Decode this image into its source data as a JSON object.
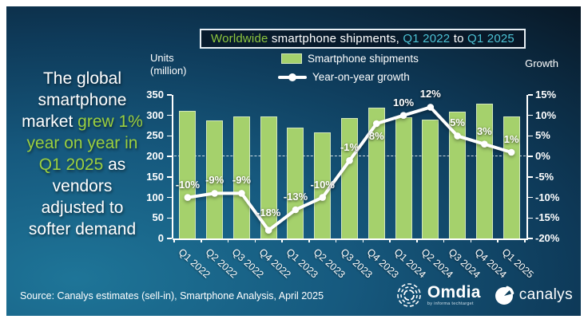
{
  "headline": {
    "lines": [
      {
        "parts": [
          {
            "t": "The global",
            "c": "w"
          }
        ]
      },
      {
        "parts": [
          {
            "t": "smartphone",
            "c": "w"
          }
        ]
      },
      {
        "parts": [
          {
            "t": "market ",
            "c": "w"
          },
          {
            "t": "grew 1%",
            "c": "g"
          }
        ]
      },
      {
        "parts": [
          {
            "t": "year on year in",
            "c": "g"
          }
        ]
      },
      {
        "parts": [
          {
            "t": "Q1 2025",
            "c": "g"
          },
          {
            "t": " as",
            "c": "w"
          }
        ]
      },
      {
        "parts": [
          {
            "t": "vendors",
            "c": "w"
          }
        ]
      },
      {
        "parts": [
          {
            "t": "adjusted to",
            "c": "w"
          }
        ]
      },
      {
        "parts": [
          {
            "t": "softer demand",
            "c": "w"
          }
        ]
      }
    ]
  },
  "title": {
    "parts": [
      {
        "t": "Worldwide ",
        "c": "green"
      },
      {
        "t": "smartphone shipments, ",
        "c": "white"
      },
      {
        "t": "Q1 2022",
        "c": "cyan"
      },
      {
        "t": " to ",
        "c": "white"
      },
      {
        "t": "Q1 2025",
        "c": "cyan"
      }
    ]
  },
  "legend": {
    "shipments": "Smartphone shipments",
    "growth": "Year-on-year growth"
  },
  "axis_titles": {
    "left_line1": "Units",
    "left_line2": "(million)",
    "right": "Growth"
  },
  "chart_data": {
    "type": "combo",
    "categories": [
      "Q1 2022",
      "Q2 2022",
      "Q3 2022",
      "Q4 2022",
      "Q1 2023",
      "Q2 2023",
      "Q3 2023",
      "Q4 2023",
      "Q1 2024",
      "Q2 2024",
      "Q3 2024",
      "Q4 2024",
      "Q1 2025"
    ],
    "series": [
      {
        "name": "Smartphone shipments",
        "type": "bar",
        "axis": "left",
        "unit": "million units",
        "values": [
          311,
          287,
          298,
          297,
          270,
          258,
          294,
          319,
          296,
          289,
          310,
          328,
          298
        ]
      },
      {
        "name": "Year-on-year growth",
        "type": "line",
        "axis": "right",
        "unit": "percent",
        "values": [
          -10,
          -9,
          -9,
          -18,
          -13,
          -10,
          -1,
          8,
          10,
          12,
          5,
          3,
          1
        ],
        "labels": [
          "-10%",
          "-9%",
          "-9%",
          "-18%",
          "-13%",
          "-10%",
          "-1%",
          "8%",
          "10%",
          "12%",
          "5%",
          "3%",
          "1%"
        ]
      }
    ],
    "left_axis": {
      "title": "Units (million)",
      "min": 0,
      "max": 350,
      "step": 50,
      "ticks": [
        "350",
        "300",
        "250",
        "200",
        "150",
        "100",
        "50",
        "0"
      ]
    },
    "right_axis": {
      "title": "Growth",
      "min": -20,
      "max": 15,
      "step": 5,
      "ticks": [
        "15%",
        "10%",
        "5%",
        "0%",
        "-5%",
        "-10%",
        "-15%",
        "-20%"
      ]
    },
    "gridline": {
      "style": "dashed",
      "at_right_axis_value": 0
    },
    "legend_position": "top"
  },
  "source": "Source: Canalys estimates (sell-in), Smartphone Analysis, April 2025",
  "logos": {
    "omdia": "Omdia",
    "omdia_sub": "by informa techtarget",
    "canalys": "canalys"
  },
  "colors": {
    "background_dark": "#081623",
    "background_light": "#1e7598",
    "bar_fill": "#a5d16c",
    "bar_border": "#d2e7bb",
    "line": "#ffffff",
    "accent_green": "#8dc63f",
    "accent_cyan": "#4cc2d4",
    "headline_green": "#9bcf3f",
    "title_box_bg": "#0c2235",
    "text": "#ffffff"
  }
}
